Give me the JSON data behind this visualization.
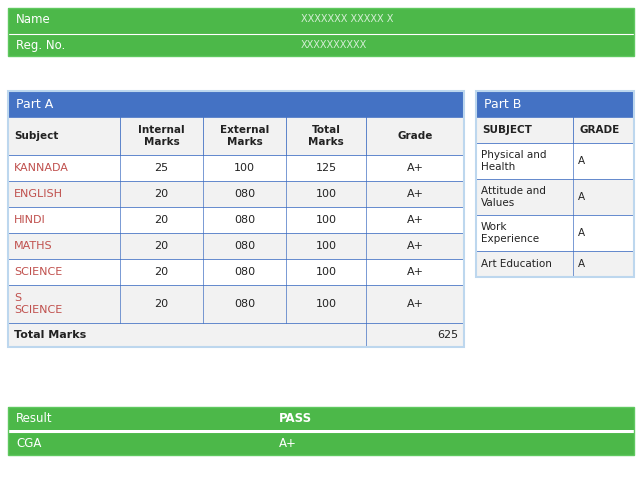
{
  "green": "#4CB849",
  "blue": "#4472C4",
  "white": "#FFFFFF",
  "light_gray": "#F2F2F2",
  "mid_gray": "#E8E8E8",
  "text_dark": "#222222",
  "red_subject": "#C0504D",
  "border_blue": "#4472C4",
  "border_light": "#BDD7EE",
  "bg_white": "#FFFFFF",
  "name_label": "Name",
  "name_blurred": true,
  "reg_label": "Reg. No.",
  "reg_blurred": true,
  "part_a_header": "Part A",
  "col_headers": [
    "Subject",
    "Internal\nMarks",
    "External\nMarks",
    "Total\nMarks",
    "Grade"
  ],
  "part_a_rows": [
    [
      "KANNADA",
      "25",
      "100",
      "125",
      "A+"
    ],
    [
      "ENGLISH",
      "20",
      "080",
      "100",
      "A+"
    ],
    [
      "HINDI",
      "20",
      "080",
      "100",
      "A+"
    ],
    [
      "MATHS",
      "20",
      "080",
      "100",
      "A+"
    ],
    [
      "SCIENCE",
      "20",
      "080",
      "100",
      "A+"
    ],
    [
      "S\nSCIENCE",
      "20",
      "080",
      "100",
      "A+"
    ]
  ],
  "total_label": "Total Marks",
  "total_value": "625",
  "part_b_header": "Part B",
  "part_b_col_headers": [
    "SUBJECT",
    "GRADE"
  ],
  "part_b_rows": [
    [
      "Physical and\nHealth",
      "A"
    ],
    [
      "Attitude and\nValues",
      "A"
    ],
    [
      "Work\nExperience",
      "A"
    ],
    [
      "Art Education",
      "A"
    ]
  ],
  "result_label": "Result",
  "result_value": "PASS",
  "cga_label": "CGA",
  "cga_value": "A+",
  "fig_w": 6.42,
  "fig_h": 4.87,
  "dpi": 100
}
